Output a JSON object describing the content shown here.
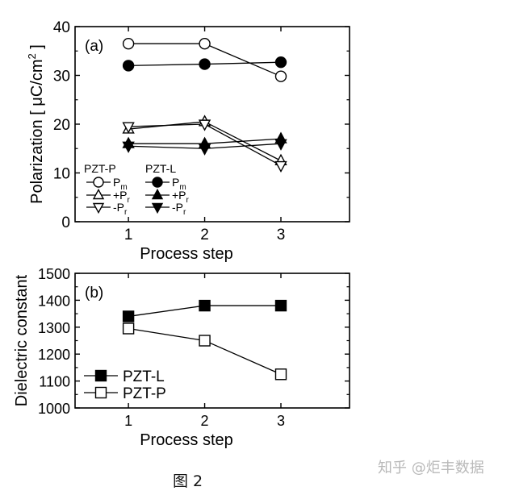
{
  "chart_data": [
    {
      "type": "line",
      "panel_label": "(a)",
      "xlabel": "Process step",
      "ylabel": "Polarization [ μC/cm",
      "ylabel_sup": "2",
      "ylabel_end": "]",
      "xlim": [
        0.3,
        3.9
      ],
      "ylim": [
        0,
        40
      ],
      "xticks": [
        "1",
        "2",
        "3"
      ],
      "yticks": [
        "0",
        "10",
        "20",
        "30",
        "40"
      ],
      "x": [
        1,
        2,
        3
      ],
      "legend_groups": [
        "PZT-P",
        "PZT-L"
      ],
      "legend_sub_base": [
        "P",
        "+P",
        "-P",
        "P",
        "+P",
        "-P"
      ],
      "legend_sub_index": [
        "m",
        "r",
        "r",
        "m",
        "r",
        "r"
      ],
      "series": [
        {
          "group": "PZT-P",
          "values": [
            36.5,
            36.5,
            29.8
          ],
          "marker": "circle",
          "filled": false
        },
        {
          "group": "PZT-P",
          "values": [
            19.0,
            20.5,
            12.5
          ],
          "marker": "triangle-up",
          "filled": false
        },
        {
          "group": "PZT-P",
          "values": [
            19.5,
            20.0,
            11.5
          ],
          "marker": "triangle-down",
          "filled": false
        },
        {
          "group": "PZT-L",
          "values": [
            32.0,
            32.3,
            32.7
          ],
          "marker": "circle",
          "filled": true
        },
        {
          "group": "PZT-L",
          "values": [
            16.0,
            16.0,
            17.0
          ],
          "marker": "triangle-up",
          "filled": true
        },
        {
          "group": "PZT-L",
          "values": [
            15.5,
            15.0,
            16.0
          ],
          "marker": "triangle-down",
          "filled": true
        }
      ]
    },
    {
      "type": "line",
      "panel_label": "(b)",
      "xlabel": "Process step",
      "ylabel": "Dielectric constant",
      "xlim": [
        0.3,
        3.9
      ],
      "ylim": [
        1000,
        1500
      ],
      "xticks": [
        "1",
        "2",
        "3"
      ],
      "yticks": [
        "1000",
        "1100",
        "1200",
        "1300",
        "1400",
        "1500"
      ],
      "x": [
        1,
        2,
        3
      ],
      "series": [
        {
          "name": "PZT-L",
          "values": [
            1340,
            1380,
            1380
          ],
          "marker": "square",
          "filled": true
        },
        {
          "name": "PZT-P",
          "values": [
            1295,
            1250,
            1125
          ],
          "marker": "square",
          "filled": false
        }
      ]
    }
  ],
  "caption": "图 2",
  "watermark": "知乎 @炬丰数据"
}
